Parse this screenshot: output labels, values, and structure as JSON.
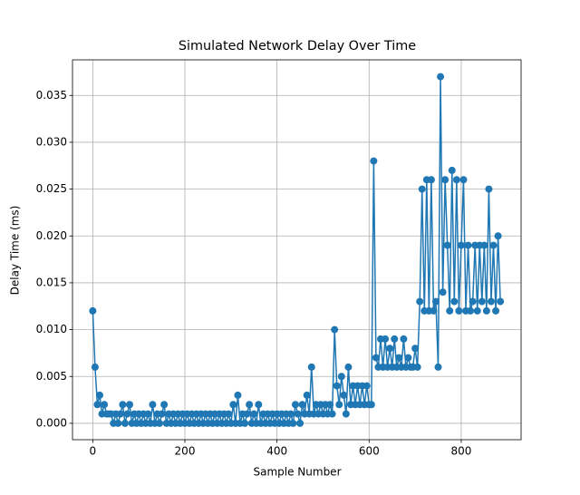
{
  "chart_data": {
    "type": "line",
    "title": "Simulated Network Delay Over Time",
    "x_label": "Sample Number",
    "y_label": "Delay Time (ms)",
    "x": [
      0,
      5,
      10,
      15,
      20,
      25,
      30,
      35,
      40,
      45,
      50,
      55,
      60,
      65,
      70,
      75,
      80,
      85,
      90,
      95,
      100,
      105,
      110,
      115,
      120,
      125,
      130,
      135,
      140,
      145,
      150,
      155,
      160,
      165,
      170,
      175,
      180,
      185,
      190,
      195,
      200,
      205,
      210,
      215,
      220,
      225,
      230,
      235,
      240,
      245,
      250,
      255,
      260,
      265,
      270,
      275,
      280,
      285,
      290,
      295,
      300,
      305,
      310,
      315,
      320,
      325,
      330,
      335,
      340,
      345,
      350,
      355,
      360,
      365,
      370,
      375,
      380,
      385,
      390,
      395,
      400,
      405,
      410,
      415,
      420,
      425,
      430,
      435,
      440,
      445,
      450,
      455,
      460,
      465,
      470,
      475,
      480,
      485,
      490,
      495,
      500,
      505,
      510,
      515,
      520,
      525,
      530,
      535,
      540,
      545,
      550,
      555,
      560,
      565,
      570,
      575,
      580,
      585,
      590,
      595,
      600,
      605,
      610,
      615,
      620,
      625,
      630,
      635,
      640,
      645,
      650,
      655,
      660,
      665,
      670,
      675,
      680,
      685,
      690,
      695,
      700,
      705,
      710,
      715,
      720,
      725,
      730,
      735,
      740,
      745,
      750,
      755,
      760,
      765,
      770,
      775,
      780,
      785,
      790,
      795,
      800,
      805,
      810,
      815,
      820,
      825,
      830,
      835,
      840,
      845,
      850,
      855,
      860,
      865,
      870,
      875,
      880,
      885
    ],
    "series": [
      {
        "name": "Delay",
        "color": "#1f77b4",
        "values": [
          0.012,
          0.006,
          0.002,
          0.003,
          0.001,
          0.002,
          0.001,
          0.001,
          0.001,
          0,
          0.001,
          0,
          0.001,
          0.002,
          0,
          0.001,
          0.002,
          0,
          0.001,
          0,
          0.001,
          0,
          0.001,
          0,
          0.001,
          0,
          0.002,
          0,
          0.001,
          0,
          0.001,
          0.002,
          0,
          0.001,
          0,
          0.001,
          0,
          0.001,
          0,
          0.001,
          0,
          0.001,
          0,
          0.001,
          0,
          0.001,
          0,
          0.001,
          0,
          0.001,
          0,
          0.001,
          0,
          0.001,
          0,
          0.001,
          0,
          0.001,
          0,
          0.001,
          0,
          0.002,
          0,
          0.003,
          0,
          0.001,
          0,
          0.001,
          0.002,
          0,
          0.001,
          0,
          0.002,
          0,
          0.001,
          0,
          0.001,
          0,
          0.001,
          0,
          0.001,
          0,
          0.001,
          0,
          0.001,
          0,
          0.001,
          0,
          0.002,
          0.001,
          0,
          0.002,
          0.001,
          0.003,
          0.001,
          0.006,
          0.001,
          0.002,
          0.001,
          0.002,
          0.001,
          0.002,
          0.001,
          0.002,
          0.001,
          0.01,
          0.004,
          0.002,
          0.005,
          0.003,
          0.001,
          0.006,
          0.002,
          0.004,
          0.002,
          0.004,
          0.002,
          0.004,
          0.002,
          0.004,
          0.002,
          0.002,
          0.028,
          0.007,
          0.006,
          0.009,
          0.006,
          0.009,
          0.006,
          0.008,
          0.006,
          0.009,
          0.006,
          0.007,
          0.006,
          0.009,
          0.006,
          0.007,
          0.006,
          0.006,
          0.008,
          0.006,
          0.013,
          0.025,
          0.012,
          0.026,
          0.012,
          0.026,
          0.012,
          0.013,
          0.006,
          0.037,
          0.014,
          0.026,
          0.019,
          0.012,
          0.027,
          0.013,
          0.026,
          0.012,
          0.019,
          0.026,
          0.012,
          0.019,
          0.012,
          0.013,
          0.019,
          0.012,
          0.019,
          0.013,
          0.019,
          0.012,
          0.025,
          0.013,
          0.019,
          0.012,
          0.02,
          0.013
        ]
      }
    ],
    "xlim": [
      -44,
      930
    ],
    "xticks": [
      0,
      200,
      400,
      600,
      800
    ],
    "ylim": [
      -0.00175,
      0.0388
    ],
    "yticks": [
      {
        "value": 0,
        "label": "0.000"
      },
      {
        "value": 0.005,
        "label": "0.005"
      },
      {
        "value": 0.01,
        "label": "0.010"
      },
      {
        "value": 0.015,
        "label": "0.015"
      },
      {
        "value": 0.02,
        "label": "0.020"
      },
      {
        "value": 0.025,
        "label": "0.025"
      },
      {
        "value": 0.03,
        "label": "0.030"
      },
      {
        "value": 0.035,
        "label": "0.035"
      }
    ],
    "grid": true,
    "marker": "o"
  }
}
